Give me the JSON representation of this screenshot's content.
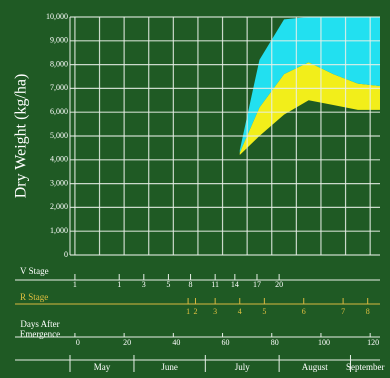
{
  "chart_data": {
    "type": "band",
    "ylabel": "Dry Weight (kg/ha)",
    "ylim": [
      0,
      10000
    ],
    "yticks": [
      0,
      {
        "value": 1000,
        "label": "1,000"
      },
      {
        "value": 2000,
        "label": "2,000"
      },
      {
        "value": 3000,
        "label": "3,000"
      },
      {
        "value": 4000,
        "label": "4,000"
      },
      {
        "value": 5000,
        "label": "5,000"
      },
      {
        "value": 6000,
        "label": "6,000"
      },
      {
        "value": 7000,
        "label": "7,000"
      },
      {
        "value": 8000,
        "label": "8,000"
      },
      {
        "value": 9000,
        "label": "9,000"
      },
      {
        "value": 10000,
        "label": "10,000"
      }
    ],
    "xlim": [
      -2,
      124
    ],
    "xlabel": "Days After Emergence",
    "xticks": [
      0,
      20,
      40,
      60,
      80,
      100,
      120
    ],
    "xgrid": [
      0,
      10,
      20,
      30,
      40,
      50,
      60,
      70,
      80,
      90,
      100,
      110,
      120
    ],
    "grid": true,
    "x": [
      67,
      75,
      85,
      95,
      105,
      115,
      124
    ],
    "series": [
      {
        "color": "#f2ee1a",
        "lower": [
          4200,
          5000,
          5900,
          6500,
          6300,
          6100,
          6100
        ],
        "upper": [
          4300,
          6200,
          7600,
          8100,
          7600,
          7200,
          7100
        ]
      },
      {
        "color": "#22e0f0",
        "lower": [
          4300,
          6200,
          7600,
          8100,
          7600,
          7200,
          7100
        ],
        "upper": [
          4400,
          8200,
          9900,
          10000,
          10000,
          10000,
          10000
        ]
      }
    ],
    "v_stage": {
      "label": "V Stage",
      "stages": [
        1,
        1,
        3,
        5,
        8,
        11,
        14,
        17,
        20
      ],
      "days": [
        0,
        18,
        28,
        38,
        47,
        57,
        65,
        74,
        83
      ]
    },
    "r_stage": {
      "label": "R Stage",
      "stages": [
        1,
        2,
        3,
        4,
        5,
        6,
        7,
        8
      ],
      "days": [
        46,
        49,
        57,
        67,
        77,
        93,
        109,
        119
      ]
    },
    "months": {
      "names": [
        "May",
        "June",
        "July",
        "August",
        "September"
      ],
      "days": [
        -2,
        24,
        53,
        83,
        112
      ]
    }
  }
}
